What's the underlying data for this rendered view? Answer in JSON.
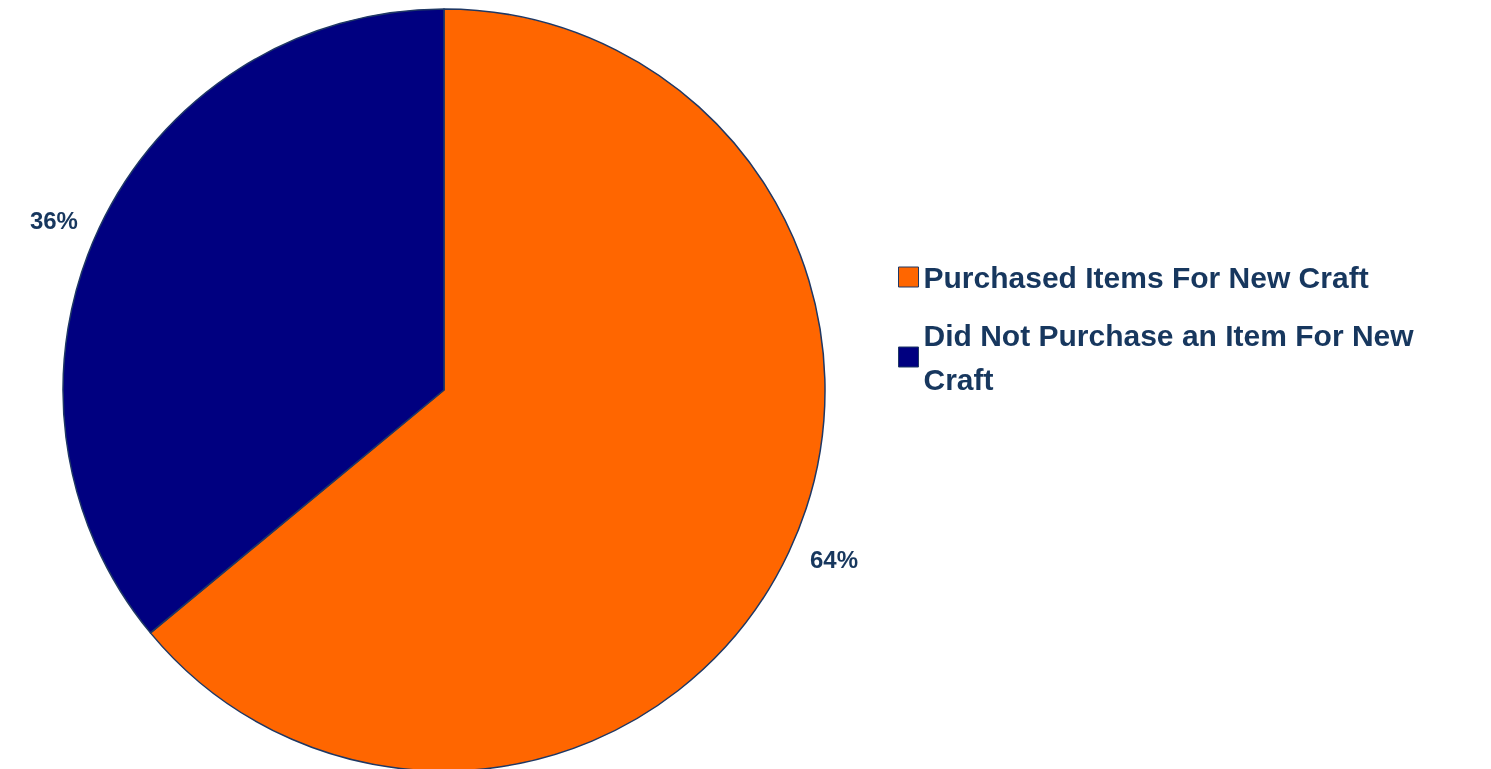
{
  "chart_data": {
    "type": "pie",
    "categories": [
      "Purchased Items For New Craft",
      "Did Not Purchase an Item For New Craft"
    ],
    "values": [
      64,
      36
    ],
    "colors": [
      "#ff6600",
      "#000080"
    ],
    "value_labels": [
      "64%",
      "36%"
    ],
    "legend": "right"
  }
}
